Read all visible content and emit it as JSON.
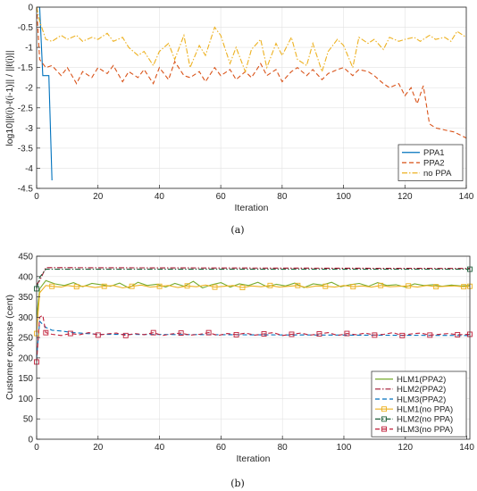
{
  "chart_data": [
    {
      "type": "line",
      "caption": "(a)",
      "xlabel": "Iteration",
      "ylabel": "log10||ℓ(i)-ℓ(i-1)|| / ||ℓ(i)||",
      "xlim": [
        0,
        140
      ],
      "ylim": [
        -4.5,
        0
      ],
      "xticks": [
        0,
        20,
        40,
        60,
        80,
        100,
        120,
        140
      ],
      "yticks": [
        0,
        -0.5,
        -1,
        -1.5,
        -2,
        -2.5,
        -3,
        -3.5,
        -4,
        -4.5
      ],
      "ytick_labels": [
        "0",
        "-0.5",
        "-1",
        "-1.5",
        "-2",
        "-2.5",
        "-3",
        "-3.5",
        "-4",
        "-4.5"
      ],
      "grid": true,
      "legend_position": "bottom-right",
      "series": [
        {
          "name": "PPA1",
          "color": "#0072BD",
          "style": "solid",
          "x": [
            1,
            2,
            3,
            4,
            5
          ],
          "y": [
            0,
            -1.7,
            -1.7,
            -1.7,
            -4.3
          ]
        },
        {
          "name": "PPA2",
          "color": "#D95319",
          "style": "dashed",
          "x": [
            0,
            1,
            3,
            5,
            8,
            10,
            13,
            15,
            18,
            20,
            23,
            25,
            28,
            30,
            33,
            35,
            38,
            40,
            43,
            45,
            48,
            50,
            53,
            55,
            58,
            60,
            63,
            65,
            68,
            70,
            73,
            75,
            78,
            80,
            83,
            85,
            88,
            90,
            93,
            95,
            98,
            100,
            103,
            105,
            108,
            110,
            113,
            115,
            118,
            120,
            122,
            124,
            126,
            128,
            130,
            133,
            136,
            140
          ],
          "y": [
            0,
            -1.3,
            -1.5,
            -1.45,
            -1.7,
            -1.5,
            -1.9,
            -1.6,
            -1.75,
            -1.5,
            -1.65,
            -1.45,
            -1.85,
            -1.6,
            -1.75,
            -1.55,
            -1.9,
            -1.5,
            -1.8,
            -1.35,
            -1.7,
            -1.75,
            -1.6,
            -1.85,
            -1.5,
            -1.7,
            -1.55,
            -1.8,
            -1.6,
            -1.75,
            -1.4,
            -1.7,
            -1.55,
            -1.85,
            -1.6,
            -1.5,
            -1.7,
            -1.55,
            -1.8,
            -1.65,
            -1.55,
            -1.5,
            -1.7,
            -1.55,
            -1.6,
            -1.7,
            -1.9,
            -2.0,
            -1.9,
            -2.2,
            -2.0,
            -2.4,
            -1.95,
            -2.9,
            -3.0,
            -3.05,
            -3.1,
            -3.25
          ]
        },
        {
          "name": "no PPA",
          "color": "#EDB120",
          "style": "dashdot",
          "x": [
            0,
            1,
            3,
            5,
            8,
            10,
            13,
            15,
            18,
            20,
            23,
            25,
            28,
            30,
            33,
            35,
            38,
            40,
            43,
            45,
            48,
            50,
            53,
            55,
            58,
            60,
            63,
            65,
            68,
            70,
            73,
            75,
            78,
            80,
            83,
            85,
            88,
            90,
            93,
            95,
            98,
            100,
            103,
            105,
            108,
            110,
            113,
            115,
            118,
            120,
            123,
            125,
            128,
            130,
            133,
            135,
            137,
            140
          ],
          "y": [
            0,
            -0.35,
            -0.8,
            -0.85,
            -0.7,
            -0.8,
            -0.7,
            -0.85,
            -0.75,
            -0.8,
            -0.65,
            -0.85,
            -0.75,
            -1.0,
            -1.2,
            -1.1,
            -1.45,
            -1.1,
            -0.9,
            -1.3,
            -0.7,
            -1.5,
            -0.95,
            -1.2,
            -0.5,
            -0.7,
            -1.4,
            -1.0,
            -1.6,
            -1.05,
            -0.8,
            -1.5,
            -0.9,
            -1.2,
            -0.75,
            -1.3,
            -1.45,
            -0.9,
            -1.6,
            -1.1,
            -0.8,
            -0.95,
            -1.5,
            -0.75,
            -0.9,
            -0.8,
            -1.05,
            -0.75,
            -0.85,
            -0.8,
            -0.75,
            -0.85,
            -0.7,
            -0.8,
            -0.75,
            -0.85,
            -0.6,
            -0.75
          ]
        }
      ]
    },
    {
      "type": "line",
      "caption": "(b)",
      "xlabel": "Iteration",
      "ylabel": "Customer expense (cent)",
      "xlim": [
        0,
        141
      ],
      "ylim": [
        0,
        450
      ],
      "xticks": [
        0,
        20,
        40,
        60,
        80,
        100,
        120,
        140
      ],
      "yticks": [
        0,
        50,
        100,
        150,
        200,
        250,
        300,
        350,
        400,
        450
      ],
      "grid": true,
      "legend_position": "bottom-right",
      "series": [
        {
          "name": "HLM1(PPA2)",
          "color": "#77AC30",
          "style": "solid",
          "marker": "",
          "x": [
            0,
            1,
            3,
            6,
            9,
            12,
            15,
            18,
            21,
            24,
            27,
            30,
            33,
            36,
            39,
            42,
            45,
            48,
            51,
            54,
            57,
            60,
            63,
            66,
            69,
            72,
            75,
            78,
            81,
            84,
            87,
            90,
            93,
            96,
            99,
            102,
            105,
            108,
            111,
            114,
            117,
            120,
            123,
            126,
            129,
            132,
            135,
            138,
            141
          ],
          "y": [
            300,
            370,
            390,
            382,
            378,
            385,
            375,
            383,
            380,
            376,
            384,
            372,
            386,
            378,
            381,
            374,
            383,
            376,
            388,
            372,
            380,
            385,
            374,
            382,
            378,
            386,
            375,
            381,
            377,
            384,
            373,
            382,
            379,
            386,
            375,
            380,
            383,
            376,
            385,
            378,
            380,
            374,
            382,
            378,
            380,
            376,
            379,
            377,
            378
          ]
        },
        {
          "name": "HLM2(PPA2)",
          "color": "#A2142F",
          "style": "dashdot",
          "marker": "",
          "x": [
            0,
            1,
            3,
            141
          ],
          "y": [
            380,
            390,
            422,
            420
          ]
        },
        {
          "name": "HLM3(PPA2)",
          "color": "#0072BD",
          "style": "dashed",
          "marker": "",
          "x": [
            0,
            1,
            3,
            5,
            8,
            12,
            20,
            141
          ],
          "y": [
            200,
            290,
            275,
            268,
            266,
            262,
            258,
            255
          ]
        },
        {
          "name": "HLM1(no PPA)",
          "color": "#EDB120",
          "style": "solid",
          "marker": "square",
          "x": [
            0,
            1,
            3,
            5,
            8,
            10,
            13,
            16,
            19,
            22,
            25,
            28,
            31,
            34,
            37,
            40,
            43,
            46,
            49,
            52,
            55,
            58,
            61,
            64,
            67,
            70,
            73,
            76,
            79,
            82,
            85,
            88,
            91,
            94,
            97,
            100,
            103,
            106,
            109,
            112,
            115,
            118,
            121,
            124,
            127,
            130,
            133,
            136,
            139,
            141
          ],
          "y": [
            260,
            360,
            378,
            376,
            374,
            378,
            375,
            377,
            373,
            376,
            378,
            372,
            376,
            379,
            374,
            376,
            378,
            373,
            377,
            375,
            379,
            374,
            376,
            378,
            373,
            377,
            375,
            378,
            374,
            376,
            378,
            373,
            377,
            376,
            374,
            378,
            375,
            377,
            374,
            378,
            375,
            376,
            377,
            374,
            378,
            375,
            376,
            377,
            375,
            376
          ]
        },
        {
          "name": "HLM2(no PPA)",
          "color": "#1E5E3A",
          "style": "dashdot",
          "marker": "square",
          "x": [
            0,
            1,
            3,
            141
          ],
          "y": [
            370,
            398,
            418,
            418
          ]
        },
        {
          "name": "HLM3(no PPA)",
          "color": "#C0203A",
          "style": "dashed",
          "marker": "square",
          "x": [
            0,
            1,
            2,
            3,
            5,
            8,
            11,
            14,
            17,
            20,
            23,
            26,
            29,
            32,
            35,
            38,
            41,
            44,
            47,
            50,
            53,
            56,
            59,
            62,
            65,
            68,
            71,
            74,
            77,
            80,
            83,
            86,
            89,
            92,
            95,
            98,
            101,
            104,
            107,
            110,
            113,
            116,
            119,
            122,
            125,
            128,
            131,
            134,
            137,
            141
          ],
          "y": [
            190,
            300,
            305,
            262,
            258,
            255,
            260,
            257,
            262,
            256,
            259,
            261,
            255,
            260,
            257,
            262,
            255,
            259,
            261,
            256,
            258,
            262,
            255,
            260,
            257,
            261,
            256,
            259,
            262,
            255,
            258,
            261,
            256,
            259,
            262,
            255,
            260,
            257,
            261,
            256,
            258,
            262,
            255,
            259,
            261,
            256,
            258,
            260,
            257,
            258
          ]
        }
      ]
    }
  ]
}
